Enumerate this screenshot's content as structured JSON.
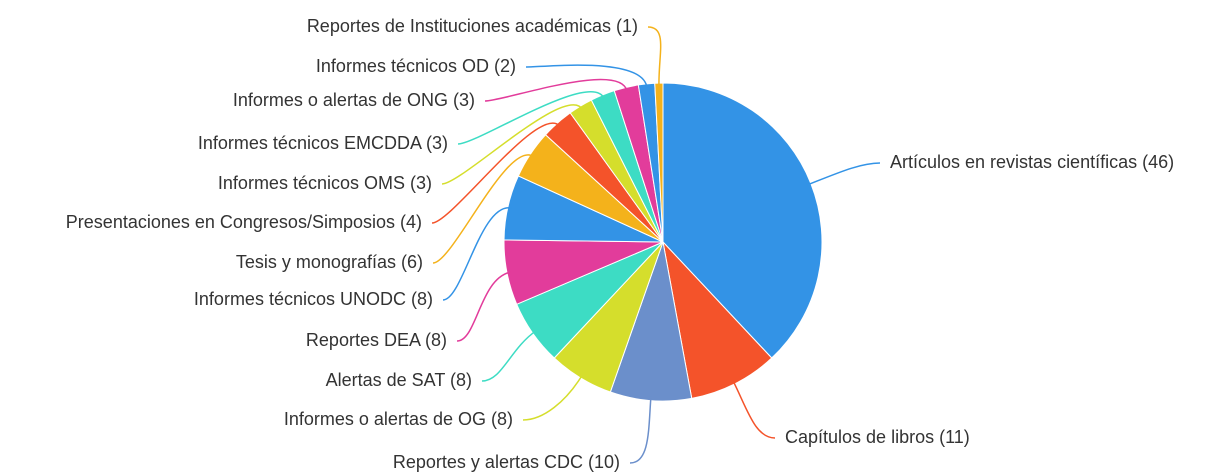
{
  "chart_data": {
    "type": "pie",
    "categories": [
      "Artículos en revistas científicas",
      "Capítulos de libros",
      "Reportes y alertas CDC",
      "Informes o alertas de OG",
      "Alertas de SAT",
      "Reportes DEA",
      "Informes técnicos UNODC",
      "Tesis y monografías",
      "Presentaciones en Congresos/Simposios",
      "Informes técnicos OMS",
      "Informes técnicos EMCDDA",
      "Informes o alertas de ONG",
      "Informes técnicos OD",
      "Reportes de Instituciones académicas"
    ],
    "values": [
      46,
      11,
      10,
      8,
      8,
      8,
      8,
      6,
      4,
      3,
      3,
      3,
      2,
      1
    ],
    "value_labels": [
      "(46)",
      "(11)",
      "(10)",
      "(8)",
      "(8)",
      "(8)",
      "(8)",
      "(6)",
      "(4)",
      "(3)",
      "(3)",
      "(3)",
      "(2)",
      "(1)"
    ],
    "colors": [
      "#3393e6",
      "#f4532a",
      "#6b8fcb",
      "#d5de2c",
      "#3ddcc4",
      "#e23c9b",
      "#3393e6",
      "#f4b21b",
      "#f4532a",
      "#d5de2c",
      "#3ddcc4",
      "#e23c9b",
      "#3393e6",
      "#f4b21b"
    ]
  }
}
